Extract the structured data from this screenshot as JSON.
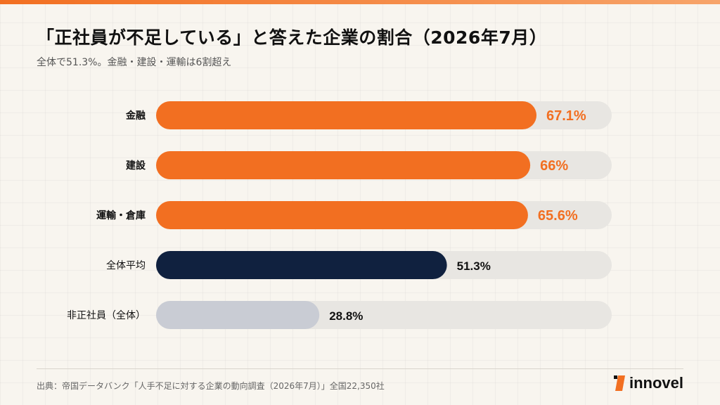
{
  "header": {
    "title": "「正社員が不足している」と答えた企業の割合（2026年7月）",
    "subtitle": "全体で51.3%。金融・建設・運輸は6割超え"
  },
  "footer": {
    "source": "出典：帝国データバンク「人手不足に対する企業の動向調査（2026年7月）」全国22,350社",
    "logo_text": "innovel"
  },
  "colors": {
    "accent": "#f26f21",
    "navy": "#10213f",
    "muted": "#c9ccd4",
    "track": "#e8e6e2"
  },
  "chart_data": {
    "type": "bar",
    "orientation": "horizontal",
    "xlim": [
      0,
      100
    ],
    "categories": [
      "金融",
      "建設",
      "運輸・倉庫",
      "全体平均",
      "非正社員（全体）"
    ],
    "values": [
      67.1,
      66,
      65.6,
      51.3,
      28.8
    ],
    "value_labels": [
      "67.1%",
      "66%",
      "65.6%",
      "51.3%",
      "28.8%"
    ],
    "bar_colors": [
      "#f26f21",
      "#f26f21",
      "#f26f21",
      "#10213f",
      "#c9ccd4"
    ],
    "label_colors": [
      "#f26f21",
      "#f26f21",
      "#f26f21",
      "#111111",
      "#111111"
    ]
  }
}
